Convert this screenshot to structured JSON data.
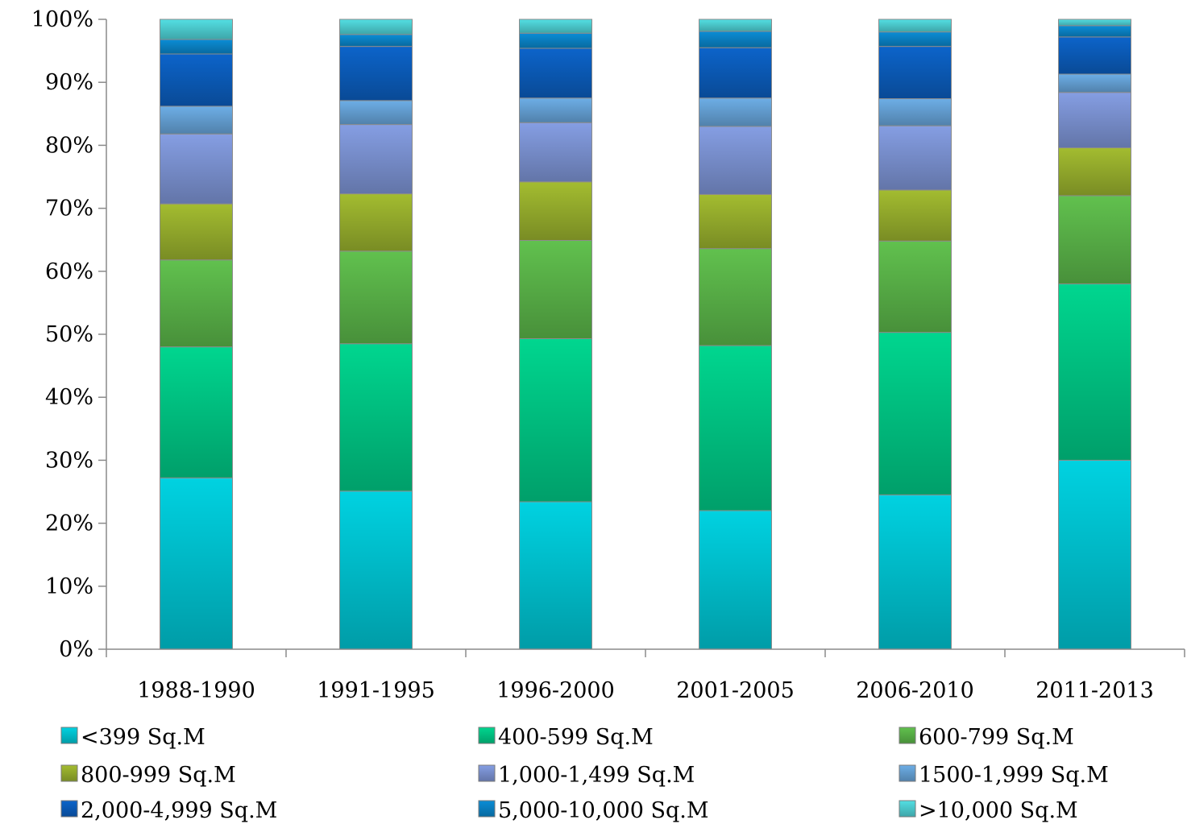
{
  "chart_data": {
    "type": "bar",
    "stacked": "percent",
    "title": "",
    "xlabel": "",
    "ylabel": "",
    "ylim": [
      0,
      100
    ],
    "y_ticks": [
      "0%",
      "10%",
      "20%",
      "30%",
      "40%",
      "50%",
      "60%",
      "70%",
      "80%",
      "90%",
      "100%"
    ],
    "grid": false,
    "legend_position": "bottom",
    "categories": [
      "1988-1990",
      "1991-1995",
      "1996-2000",
      "2001-2005",
      "2006-2010",
      "2011-2013"
    ],
    "series": [
      {
        "name": "<399 Sq.M",
        "color": "#00c8d6",
        "values": [
          27.2,
          25.1,
          23.4,
          22.0,
          24.5,
          30.0
        ]
      },
      {
        "name": "400-599 Sq.M",
        "color": "#00cc88",
        "values": [
          20.8,
          23.4,
          25.9,
          26.2,
          25.8,
          28.0
        ]
      },
      {
        "name": "600-799 Sq.M",
        "color": "#5cb84a",
        "values": [
          13.8,
          14.7,
          15.6,
          15.4,
          14.5,
          14.0
        ]
      },
      {
        "name": "800-999 Sq.M",
        "color": "#9bb32e",
        "values": [
          8.9,
          9.1,
          9.3,
          8.6,
          8.1,
          7.6
        ]
      },
      {
        "name": "1,000-1,499 Sq.M",
        "color": "#7f96d8",
        "values": [
          11.1,
          11.0,
          9.4,
          10.8,
          10.2,
          8.8
        ]
      },
      {
        "name": "1500-1,999 Sq.M",
        "color": "#68a6db",
        "values": [
          4.4,
          3.8,
          3.9,
          4.5,
          4.3,
          2.9
        ]
      },
      {
        "name": "2,000-4,999 Sq.M",
        "color": "#0b5fc0",
        "values": [
          8.3,
          8.6,
          7.9,
          8.0,
          8.3,
          5.9
        ]
      },
      {
        "name": "5,000-10,000 Sq.M",
        "color": "#0a86cc",
        "values": [
          2.3,
          1.9,
          2.4,
          2.6,
          2.3,
          1.8
        ]
      },
      {
        "name": ">10,000 Sq.M",
        "color": "#4fd4d8",
        "values": [
          3.2,
          2.4,
          2.2,
          1.9,
          2.0,
          1.0
        ]
      }
    ]
  }
}
